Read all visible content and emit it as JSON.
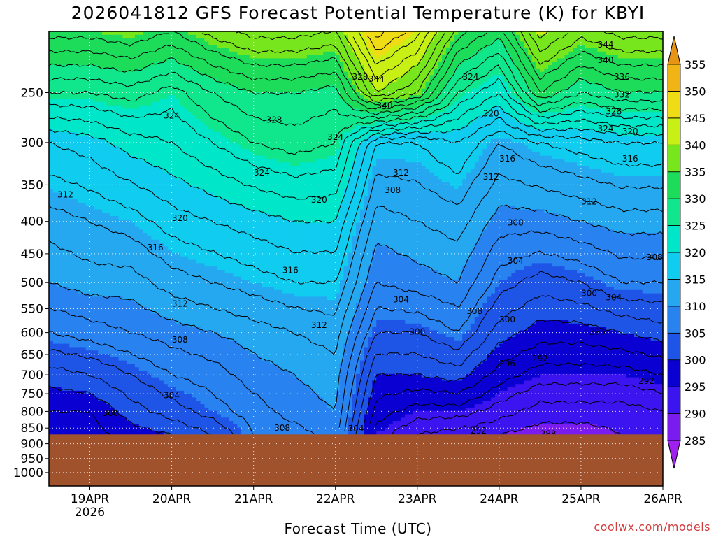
{
  "chart_data": {
    "type": "heatmap",
    "title": "2026041812 GFS Forecast Potential Temperature (K) for KBYI",
    "xlabel": "Forecast Time (UTC)",
    "ylabel": "",
    "credit": "coolwx.com/models",
    "x_ticks": [
      "19APR",
      "20APR",
      "21APR",
      "22APR",
      "23APR",
      "24APR",
      "25APR",
      "26APR"
    ],
    "x_subtick": "2026",
    "x_range_days": [
      18.5,
      26.0
    ],
    "y_ticks": [
      250,
      300,
      350,
      400,
      450,
      500,
      550,
      600,
      650,
      700,
      750,
      800,
      850,
      900,
      950,
      1000
    ],
    "y_range_hpa": [
      200,
      1050
    ],
    "surface_pressure_hpa": 870,
    "colorbar_levels": [
      285,
      290,
      295,
      300,
      305,
      310,
      315,
      320,
      325,
      330,
      335,
      340,
      345,
      350,
      355
    ],
    "colorbar_colors": [
      "#a020f0",
      "#7a1cf0",
      "#3c14f0",
      "#0a00d2",
      "#1f55e6",
      "#2882f0",
      "#25a8f0",
      "#10cdf0",
      "#00e6c8",
      "#10e68c",
      "#1cdc5a",
      "#78e61c",
      "#c8f014",
      "#f0dc14",
      "#f0b414",
      "#e69614"
    ],
    "ground_color": "#a0522d",
    "series": [
      {
        "time_day": 18.5,
        "theta_250": 326,
        "theta_300": 318,
        "theta_400": 313,
        "theta_500": 310,
        "theta_600": 306,
        "theta_700": 301,
        "theta_800": 298,
        "theta_870": 296
      },
      {
        "time_day": 19.0,
        "theta_250": 326,
        "theta_300": 319,
        "theta_400": 314,
        "theta_500": 311,
        "theta_600": 307,
        "theta_700": 302,
        "theta_800": 298,
        "theta_870": 297
      },
      {
        "time_day": 19.5,
        "theta_250": 327,
        "theta_300": 321,
        "theta_400": 315,
        "theta_500": 311,
        "theta_600": 308,
        "theta_700": 304,
        "theta_800": 301,
        "theta_870": 299
      },
      {
        "time_day": 20.0,
        "theta_250": 325,
        "theta_300": 322,
        "theta_400": 317,
        "theta_500": 313,
        "theta_600": 309,
        "theta_700": 306,
        "theta_800": 303,
        "theta_870": 300
      },
      {
        "time_day": 20.5,
        "theta_250": 328,
        "theta_300": 324,
        "theta_400": 318,
        "theta_500": 314,
        "theta_600": 310,
        "theta_700": 307,
        "theta_800": 305,
        "theta_870": 302
      },
      {
        "time_day": 21.0,
        "theta_250": 330,
        "theta_300": 326,
        "theta_400": 319,
        "theta_500": 315,
        "theta_600": 311,
        "theta_700": 309,
        "theta_800": 307,
        "theta_870": 306
      },
      {
        "time_day": 21.5,
        "theta_250": 330,
        "theta_300": 327,
        "theta_400": 320,
        "theta_500": 316,
        "theta_600": 312,
        "theta_700": 310,
        "theta_800": 309,
        "theta_870": 307
      },
      {
        "time_day": 22.0,
        "theta_250": 329,
        "theta_300": 326,
        "theta_400": 320,
        "theta_500": 316,
        "theta_600": 313,
        "theta_700": 311,
        "theta_800": 310,
        "theta_870": 309
      },
      {
        "time_day": 22.5,
        "theta_250": 340,
        "theta_300": 316,
        "theta_400": 311,
        "theta_500": 308,
        "theta_600": 304,
        "theta_700": 300,
        "theta_800": 297,
        "theta_870": 295
      },
      {
        "time_day": 23.0,
        "theta_250": 336,
        "theta_300": 316,
        "theta_400": 312,
        "theta_500": 309,
        "theta_600": 304,
        "theta_700": 300,
        "theta_800": 295,
        "theta_870": 292
      },
      {
        "time_day": 23.5,
        "theta_250": 326,
        "theta_300": 318,
        "theta_400": 313,
        "theta_500": 310,
        "theta_600": 306,
        "theta_700": 301,
        "theta_800": 295,
        "theta_870": 291
      },
      {
        "time_day": 24.0,
        "theta_250": 322,
        "theta_300": 314,
        "theta_400": 309,
        "theta_500": 305,
        "theta_600": 301,
        "theta_700": 297,
        "theta_800": 293,
        "theta_870": 290
      },
      {
        "time_day": 24.5,
        "theta_250": 332,
        "theta_300": 316,
        "theta_400": 309,
        "theta_500": 303,
        "theta_600": 299,
        "theta_700": 295,
        "theta_800": 291,
        "theta_870": 289
      },
      {
        "time_day": 25.0,
        "theta_250": 328,
        "theta_300": 317,
        "theta_400": 310,
        "theta_500": 304,
        "theta_600": 299,
        "theta_700": 295,
        "theta_800": 291,
        "theta_870": 289
      },
      {
        "time_day": 25.5,
        "theta_250": 330,
        "theta_300": 318,
        "theta_400": 311,
        "theta_500": 306,
        "theta_600": 300,
        "theta_700": 295,
        "theta_800": 291,
        "theta_870": 290
      },
      {
        "time_day": 26.0,
        "theta_250": 330,
        "theta_300": 318,
        "theta_400": 311,
        "theta_500": 306,
        "theta_600": 301,
        "theta_700": 296,
        "theta_800": 292,
        "theta_870": 291
      }
    ],
    "contour_labels": [
      {
        "text": "344",
        "t": 25.3,
        "p": 210
      },
      {
        "text": "340",
        "t": 25.3,
        "p": 222
      },
      {
        "text": "336",
        "t": 25.5,
        "p": 236
      },
      {
        "text": "332",
        "t": 25.5,
        "p": 252
      },
      {
        "text": "328",
        "t": 25.4,
        "p": 268
      },
      {
        "text": "324",
        "t": 25.3,
        "p": 285
      },
      {
        "text": "320",
        "t": 25.6,
        "p": 288
      },
      {
        "text": "316",
        "t": 25.6,
        "p": 318
      },
      {
        "text": "344",
        "t": 22.5,
        "p": 238
      },
      {
        "text": "340",
        "t": 22.6,
        "p": 262
      },
      {
        "text": "328",
        "t": 22.3,
        "p": 236
      },
      {
        "text": "324",
        "t": 23.65,
        "p": 236
      },
      {
        "text": "320",
        "t": 23.9,
        "p": 270
      },
      {
        "text": "316",
        "t": 24.1,
        "p": 318
      },
      {
        "text": "312",
        "t": 23.9,
        "p": 340
      },
      {
        "text": "312",
        "t": 22.8,
        "p": 335
      },
      {
        "text": "308",
        "t": 22.7,
        "p": 357
      },
      {
        "text": "308",
        "t": 24.2,
        "p": 402
      },
      {
        "text": "312",
        "t": 25.1,
        "p": 372
      },
      {
        "text": "308",
        "t": 25.9,
        "p": 456
      },
      {
        "text": "304",
        "t": 24.2,
        "p": 462
      },
      {
        "text": "300",
        "t": 24.1,
        "p": 572
      },
      {
        "text": "300",
        "t": 25.1,
        "p": 520
      },
      {
        "text": "304",
        "t": 25.4,
        "p": 528
      },
      {
        "text": "296",
        "t": 25.2,
        "p": 598
      },
      {
        "text": "308",
        "t": 23.7,
        "p": 555
      },
      {
        "text": "304",
        "t": 22.8,
        "p": 532
      },
      {
        "text": "300",
        "t": 23.0,
        "p": 598
      },
      {
        "text": "296",
        "t": 24.1,
        "p": 672
      },
      {
        "text": "292",
        "t": 24.5,
        "p": 660
      },
      {
        "text": "292",
        "t": 25.8,
        "p": 716
      },
      {
        "text": "292",
        "t": 23.75,
        "p": 858
      },
      {
        "text": "288",
        "t": 24.6,
        "p": 868
      },
      {
        "text": "304",
        "t": 22.25,
        "p": 852
      },
      {
        "text": "308",
        "t": 21.35,
        "p": 850
      },
      {
        "text": "312",
        "t": 21.8,
        "p": 584
      },
      {
        "text": "316",
        "t": 21.45,
        "p": 478
      },
      {
        "text": "320",
        "t": 21.8,
        "p": 370
      },
      {
        "text": "324",
        "t": 22.0,
        "p": 294
      },
      {
        "text": "328",
        "t": 21.25,
        "p": 276
      },
      {
        "text": "324",
        "t": 20.0,
        "p": 272
      },
      {
        "text": "324",
        "t": 21.1,
        "p": 335
      },
      {
        "text": "320",
        "t": 20.1,
        "p": 395
      },
      {
        "text": "316",
        "t": 19.8,
        "p": 440
      },
      {
        "text": "312",
        "t": 18.7,
        "p": 363
      },
      {
        "text": "312",
        "t": 20.1,
        "p": 540
      },
      {
        "text": "308",
        "t": 20.1,
        "p": 616
      },
      {
        "text": "304",
        "t": 20.0,
        "p": 755
      },
      {
        "text": "300",
        "t": 19.25,
        "p": 805
      }
    ]
  }
}
